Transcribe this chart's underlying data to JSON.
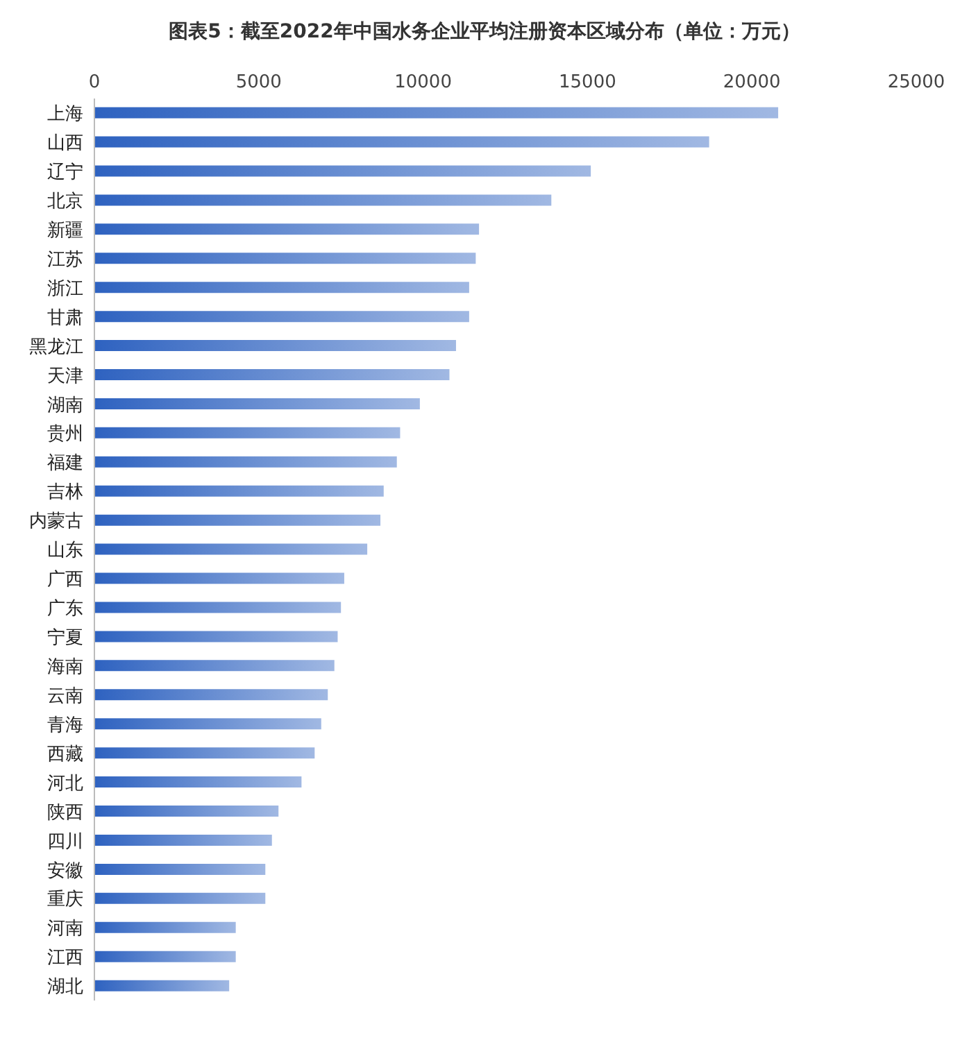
{
  "chart_data": {
    "type": "bar",
    "orientation": "horizontal",
    "title": "图表5：截至2022年中国水务企业平均注册资本区域分布（单位：万元）",
    "categories": [
      "上海",
      "山西",
      "辽宁",
      "北京",
      "新疆",
      "江苏",
      "浙江",
      "甘肃",
      "黑龙江",
      "天津",
      "湖南",
      "贵州",
      "福建",
      "吉林",
      "内蒙古",
      "山东",
      "广西",
      "广东",
      "宁夏",
      "海南",
      "云南",
      "青海",
      "西藏",
      "河北",
      "陕西",
      "四川",
      "安徽",
      "重庆",
      "河南",
      "江西",
      "湖北"
    ],
    "values": [
      20800,
      18700,
      15100,
      13900,
      11700,
      11600,
      11400,
      11400,
      11000,
      10800,
      9900,
      9300,
      9200,
      8800,
      8700,
      8300,
      7600,
      7500,
      7400,
      7300,
      7100,
      6900,
      6700,
      6300,
      5600,
      5400,
      5200,
      5200,
      4300,
      4300,
      4100
    ],
    "color": "#2e62c0",
    "xlim": [
      0,
      25000
    ],
    "xticks": [
      0,
      5000,
      10000,
      15000,
      20000,
      25000
    ],
    "grid": false,
    "legend": false
  }
}
